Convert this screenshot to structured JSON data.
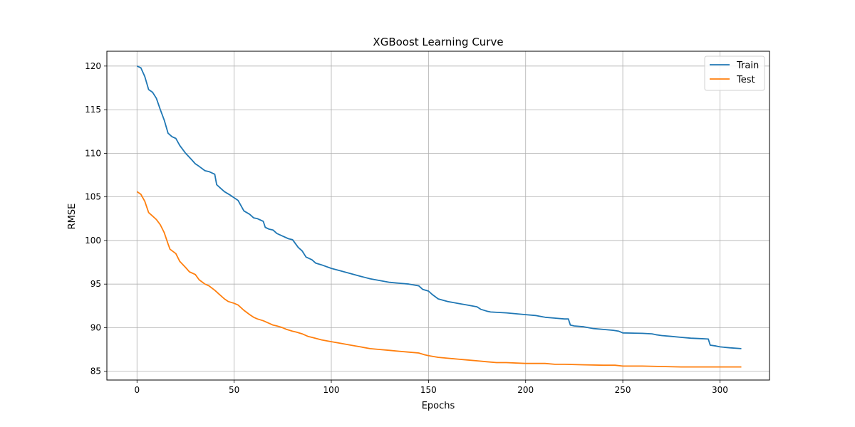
{
  "chart_data": {
    "type": "line",
    "title": "XGBoost Learning Curve",
    "xlabel": "Epochs",
    "ylabel": "RMSE",
    "xlim": [
      -15.5,
      325.5
    ],
    "ylim": [
      84.0,
      121.7
    ],
    "xticks": [
      0,
      50,
      100,
      150,
      200,
      250,
      300
    ],
    "yticks": [
      85,
      90,
      95,
      100,
      105,
      110,
      115,
      120
    ],
    "grid": true,
    "legend": "top-right",
    "series": [
      {
        "name": "Train",
        "color": "#1f77b4",
        "x": [
          0,
          2,
          4,
          6,
          8,
          10,
          12,
          14,
          16,
          18,
          20,
          22,
          25,
          28,
          30,
          32,
          35,
          37,
          40,
          41,
          43,
          45,
          48,
          50,
          52,
          55,
          58,
          60,
          62,
          65,
          66,
          68,
          70,
          72,
          75,
          78,
          80,
          83,
          85,
          87,
          90,
          92,
          95,
          100,
          105,
          110,
          115,
          120,
          125,
          130,
          135,
          140,
          145,
          147,
          150,
          152,
          155,
          160,
          165,
          170,
          175,
          177,
          180,
          182,
          190,
          195,
          200,
          205,
          210,
          215,
          220,
          222,
          223,
          225,
          230,
          235,
          240,
          245,
          248,
          250,
          260,
          265,
          267,
          270,
          275,
          280,
          285,
          290,
          294,
          295,
          298,
          300,
          305,
          311
        ],
        "y": [
          120.0,
          119.8,
          118.8,
          117.3,
          117.0,
          116.3,
          115.0,
          113.8,
          112.3,
          111.9,
          111.7,
          110.9,
          110.0,
          109.3,
          108.8,
          108.5,
          108.0,
          107.9,
          107.6,
          106.4,
          106.0,
          105.6,
          105.2,
          104.9,
          104.6,
          103.4,
          103.0,
          102.6,
          102.5,
          102.2,
          101.5,
          101.3,
          101.2,
          100.8,
          100.5,
          100.2,
          100.1,
          99.2,
          98.8,
          98.1,
          97.8,
          97.4,
          97.2,
          96.8,
          96.5,
          96.2,
          95.9,
          95.6,
          95.4,
          95.2,
          95.1,
          95.0,
          94.8,
          94.4,
          94.2,
          93.8,
          93.3,
          93.0,
          92.8,
          92.6,
          92.4,
          92.1,
          91.9,
          91.8,
          91.7,
          91.6,
          91.5,
          91.4,
          91.2,
          91.1,
          91.0,
          91.0,
          90.3,
          90.2,
          90.1,
          89.9,
          89.8,
          89.7,
          89.6,
          89.4,
          89.35,
          89.3,
          89.2,
          89.1,
          89.0,
          88.9,
          88.8,
          88.75,
          88.7,
          88.0,
          87.9,
          87.8,
          87.7,
          87.6
        ]
      },
      {
        "name": "Test",
        "color": "#ff7f0e",
        "x": [
          0,
          2,
          4,
          6,
          8,
          10,
          12,
          14,
          16,
          17,
          20,
          22,
          25,
          27,
          30,
          32,
          35,
          37,
          40,
          42,
          45,
          47,
          50,
          52,
          55,
          58,
          60,
          62,
          65,
          68,
          70,
          72,
          75,
          77,
          80,
          82,
          85,
          88,
          90,
          95,
          100,
          105,
          110,
          115,
          120,
          125,
          130,
          135,
          140,
          145,
          148,
          150,
          155,
          160,
          165,
          170,
          175,
          180,
          185,
          190,
          200,
          210,
          215,
          220,
          230,
          240,
          246,
          250,
          260,
          270,
          280,
          285,
          290,
          300,
          311
        ],
        "y": [
          105.6,
          105.3,
          104.5,
          103.2,
          102.8,
          102.4,
          101.8,
          100.9,
          99.6,
          99.0,
          98.5,
          97.6,
          96.9,
          96.4,
          96.1,
          95.5,
          95.0,
          94.8,
          94.3,
          93.9,
          93.3,
          93.0,
          92.8,
          92.6,
          92.0,
          91.5,
          91.2,
          91.0,
          90.8,
          90.5,
          90.3,
          90.2,
          90.0,
          89.8,
          89.6,
          89.5,
          89.3,
          89.0,
          88.9,
          88.6,
          88.4,
          88.2,
          88.0,
          87.8,
          87.6,
          87.5,
          87.4,
          87.3,
          87.2,
          87.1,
          86.9,
          86.8,
          86.6,
          86.5,
          86.4,
          86.3,
          86.2,
          86.1,
          86.0,
          86.0,
          85.9,
          85.9,
          85.8,
          85.8,
          85.75,
          85.7,
          85.7,
          85.6,
          85.6,
          85.55,
          85.5,
          85.5,
          85.5,
          85.5,
          85.5
        ]
      }
    ]
  }
}
